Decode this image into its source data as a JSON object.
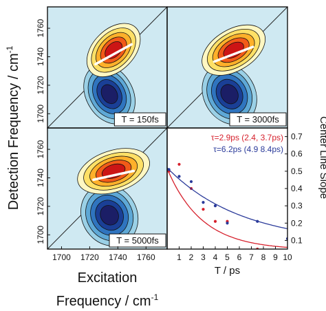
{
  "figure": {
    "y_label_main": "Detection Frequency / cm",
    "y_label_sup": "-1",
    "x_label_line1": "Excitation",
    "x_label_line2_main": "Frequency / cm",
    "x_label_line2_sup": "-1"
  },
  "colors": {
    "background_fill": "#cfe9f2",
    "positive_scale": [
      "#fff7c2",
      "#ffe066",
      "#ffb02a",
      "#f25a18",
      "#cc1515"
    ],
    "negative_scale": [
      "#9ad0e6",
      "#5ea8d6",
      "#2f74bf",
      "#1a3f96",
      "#1b1e66"
    ],
    "center_line": "#ffffff",
    "fit_red": "#d6202c",
    "fit_blue": "#2a3a9a"
  },
  "chart_data": [
    {
      "type": "heatmap",
      "panel": "top-left",
      "label": "T = 150fs",
      "y_ticks": [
        "1700",
        "1720",
        "1740",
        "1760"
      ],
      "x_ticks": []
    },
    {
      "type": "heatmap",
      "panel": "top-right",
      "label": "T = 3000fs",
      "y_ticks": [],
      "x_ticks": []
    },
    {
      "type": "heatmap",
      "panel": "bottom-left",
      "label": "T = 5000fs",
      "y_ticks": [
        "1700",
        "1720",
        "1740",
        "1760"
      ],
      "x_ticks": [
        "1700",
        "1720",
        "1740",
        "1760"
      ]
    },
    {
      "type": "scatter",
      "panel": "bottom-right",
      "xlabel": "T / ps",
      "ylabel": "Center Line Slope",
      "xlim": [
        0,
        10
      ],
      "ylim": [
        0.05,
        0.75
      ],
      "x_ticks": [
        "1",
        "2",
        "3",
        "4",
        "5",
        "6",
        "7",
        "8",
        "9",
        "10"
      ],
      "y_ticks": [
        "0.1",
        "0.2",
        "0.3",
        "0.4",
        "0.5",
        "0.6",
        "0.7"
      ],
      "legend_placement": "top-right",
      "series": [
        {
          "name": "τ=2.9ps (2.4, 3.7ps)",
          "color": "#d6202c",
          "x": [
            0.15,
            1.0,
            2.0,
            3.0,
            4.0,
            5.0,
            7.5
          ],
          "y": [
            0.5,
            0.54,
            0.4,
            0.28,
            0.21,
            0.21,
            0.05
          ],
          "fit": {
            "a": 0.47,
            "tau": 2.9,
            "c": 0.045
          }
        },
        {
          "name": "τ=6.2ps (4.9 8.4ps)",
          "color": "#2a3a9a",
          "x": [
            0.15,
            1.0,
            2.0,
            3.0,
            4.0,
            5.0,
            7.5,
            10.0
          ],
          "y": [
            0.51,
            0.47,
            0.44,
            0.32,
            0.3,
            0.2,
            0.21,
            0.11
          ],
          "fit": {
            "a": 0.44,
            "tau": 6.2,
            "c": 0.08
          }
        }
      ]
    }
  ]
}
